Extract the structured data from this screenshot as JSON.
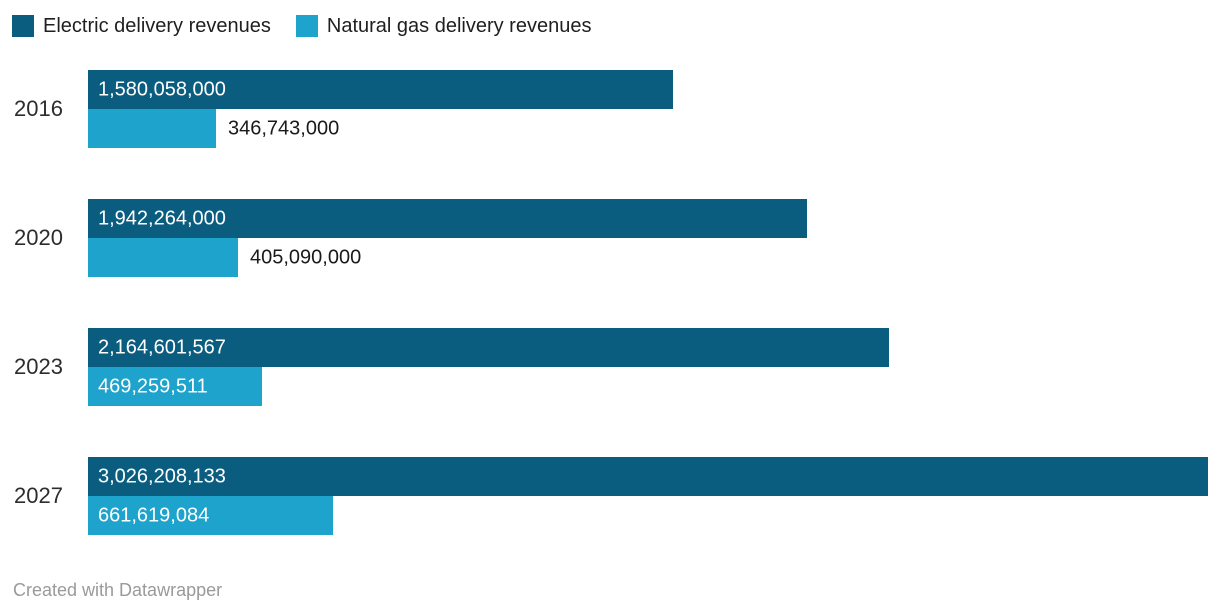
{
  "legend": [
    {
      "label": "Electric delivery revenues",
      "color": "#0b5d80"
    },
    {
      "label": "Natural gas delivery revenues",
      "color": "#1ea3cc"
    }
  ],
  "chart_data": {
    "type": "bar",
    "orientation": "horizontal",
    "title": "",
    "xlabel": "",
    "ylabel": "",
    "gridlines": false,
    "value_axis_visible": false,
    "legend_position": "top",
    "xlim": [
      0,
      3026208133
    ],
    "categories": [
      "2016",
      "2020",
      "2023",
      "2027"
    ],
    "series": [
      {
        "name": "Electric delivery revenues",
        "color": "#0b5d80",
        "values": [
          1580058000,
          1942264000,
          2164601567,
          3026208133
        ],
        "labels": [
          "1,580,058,000",
          "1,942,264,000",
          "2,164,601,567",
          "3,026,208,133"
        ]
      },
      {
        "name": "Natural gas delivery revenues",
        "color": "#1ea3cc",
        "values": [
          346743000,
          405090000,
          469259511,
          661619084
        ],
        "labels": [
          "346,743,000",
          "405,090,000",
          "469,259,511",
          "661,619,084"
        ]
      }
    ]
  },
  "footer": {
    "text": "Created with Datawrapper"
  }
}
